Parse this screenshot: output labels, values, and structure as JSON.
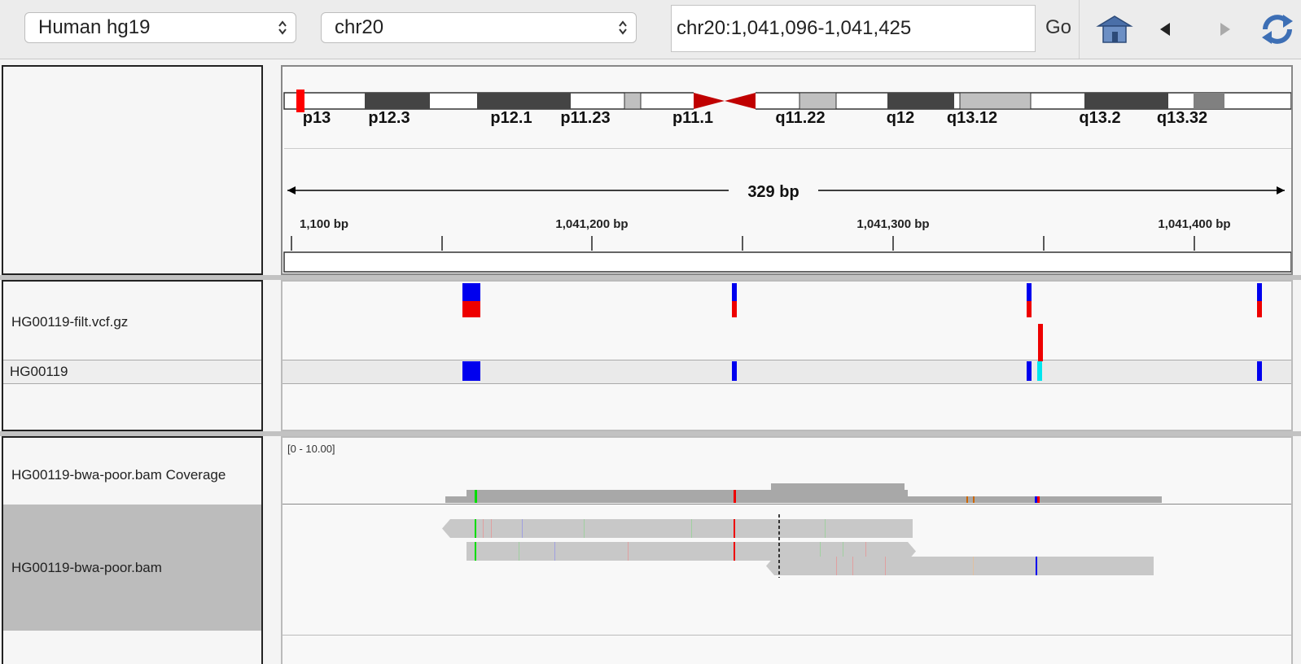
{
  "toolbar": {
    "genome": "Human hg19",
    "chromosome": "chr20",
    "locus": "chr20:1,041,096-1,041,425",
    "go_label": "Go"
  },
  "ideogram": {
    "bands": [
      "p13",
      "p12.3",
      "p12.1",
      "p11.23",
      "p11.1",
      "q11.22",
      "q12",
      "q13.12",
      "q13.2",
      "q13.32"
    ]
  },
  "ruler": {
    "span_label": "329 bp",
    "ticks": [
      "1,100 bp",
      "1,041,200 bp",
      "1,041,300 bp",
      "1,041,400 bp"
    ]
  },
  "tracks": {
    "vcf_name": "HG00119-filt.vcf.gz",
    "sample_name": "HG00119",
    "coverage_name": "HG00119-bwa-poor.bam Coverage",
    "coverage_range": "[0 - 10.00]",
    "alignment_name": "HG00119-bwa-poor.bam"
  },
  "colors": {
    "centromere": "#c00000",
    "variant_blue": "#0000ee",
    "variant_red": "#ee0000",
    "variant_cyan": "#00e5ee",
    "coverage_gray": "#a8a8a8",
    "read_gray": "#c8c8c8",
    "selected_track": "#bcbcbc"
  },
  "icons": [
    "home-icon",
    "back-arrow-icon",
    "forward-arrow-icon",
    "refresh-icon"
  ]
}
